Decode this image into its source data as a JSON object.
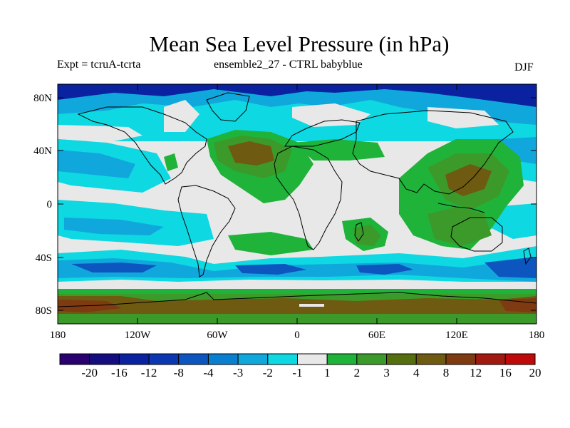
{
  "title": "Mean Sea Level Pressure (in hPa)",
  "experiment_label": "Expt = tcruA-tcrta",
  "ensemble_label": "ensemble2_27 - CTRL babyblue",
  "season": "DJF",
  "axes": {
    "y_ticks": [
      "80N",
      "40N",
      "0",
      "40S",
      "80S"
    ],
    "x_ticks": [
      "180",
      "120W",
      "60W",
      "0",
      "60E",
      "120E",
      "180"
    ]
  },
  "colorbar": {
    "labels": [
      "-20",
      "-16",
      "-12",
      "-8",
      "-4",
      "-3",
      "-2",
      "-1",
      "1",
      "2",
      "3",
      "4",
      "8",
      "12",
      "16",
      "20"
    ],
    "colors": [
      "#2a0070",
      "#140d80",
      "#0a22a0",
      "#0b38b0",
      "#0d56c0",
      "#0a7fd0",
      "#10a8dc",
      "#0ed8e2",
      "#e8e8e8",
      "#1fb33a",
      "#3c9a2a",
      "#556e10",
      "#6e5a10",
      "#7e3a10",
      "#a01a10",
      "#c00a0a"
    ]
  },
  "field_colors": {
    "strong_negative": "#0a22a0",
    "negative": "#0d56c0",
    "weak_negative": "#10a8dc",
    "slight_negative": "#0ed8e2",
    "neutral": "#e8e8e8",
    "slight_positive": "#1fb33a",
    "positive": "#3c9a2a",
    "strong_positive": "#6e5a10",
    "very_strong_positive": "#7e3a10"
  }
}
